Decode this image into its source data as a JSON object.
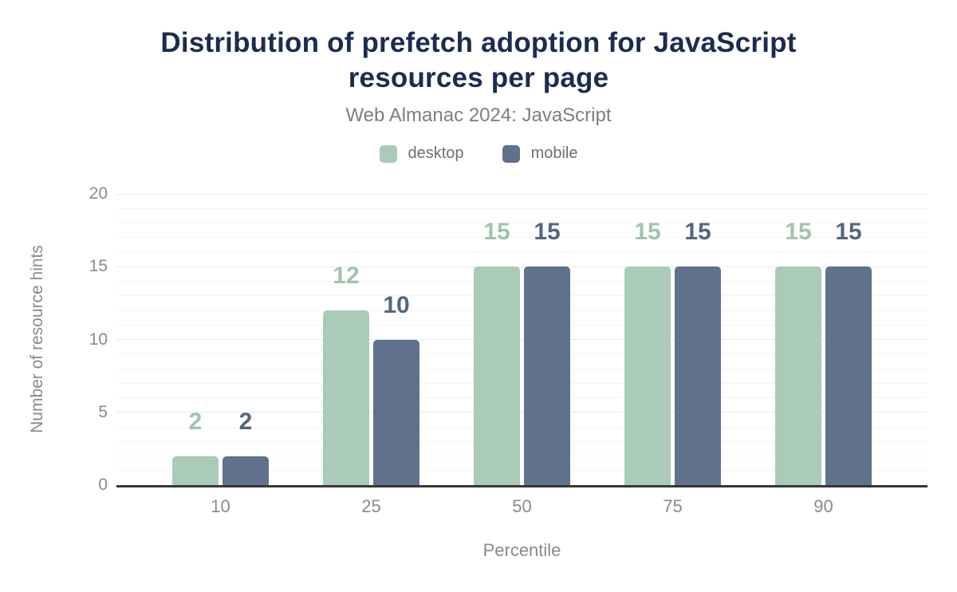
{
  "title": {
    "full": "Distribution of prefetch adoption for JavaScript resources per page",
    "line1": "Distribution of prefetch adoption for JavaScript",
    "line2": "resources per page"
  },
  "subtitle": "Web Almanac 2024: JavaScript",
  "legend": [
    {
      "label": "desktop",
      "color": "#a9cbb7"
    },
    {
      "label": "mobile",
      "color": "#5f718d"
    }
  ],
  "chart_data": {
    "type": "bar",
    "title": "Distribution of prefetch adoption for JavaScript resources per page",
    "subtitle": "Web Almanac 2024: JavaScript",
    "categories": [
      "10",
      "25",
      "50",
      "75",
      "90"
    ],
    "series": [
      {
        "name": "desktop",
        "color": "#a9cbb7",
        "label_color": "#a0c4ae",
        "values": [
          2,
          12,
          15,
          15,
          15
        ],
        "data_labels": [
          "2",
          "12",
          "15",
          "15",
          "15"
        ]
      },
      {
        "name": "mobile",
        "color": "#5f718d",
        "label_color": "#54667f",
        "values": [
          2,
          10,
          15,
          15,
          15
        ],
        "data_labels": [
          "2",
          "10",
          "15",
          "15",
          "15"
        ]
      }
    ],
    "xlabel": "Percentile",
    "ylabel": "Number of resource hints",
    "ylim": [
      0,
      20
    ],
    "yticks": [
      0,
      5,
      10,
      15,
      20
    ],
    "grid": "horizontal; minor every 1 unit, major every 5 units",
    "legend_position": "top",
    "bar_value_labels": true
  },
  "colors": {
    "title": "#1c2c50",
    "subtitle": "#7e7e7e",
    "legend_text": "#6f6f6f",
    "tick_text": "#8a8a8a",
    "axis_line": "#373737",
    "grid_major": "#e9e9e9",
    "grid_minor": "#f5f5f5",
    "background": "#ffffff"
  }
}
